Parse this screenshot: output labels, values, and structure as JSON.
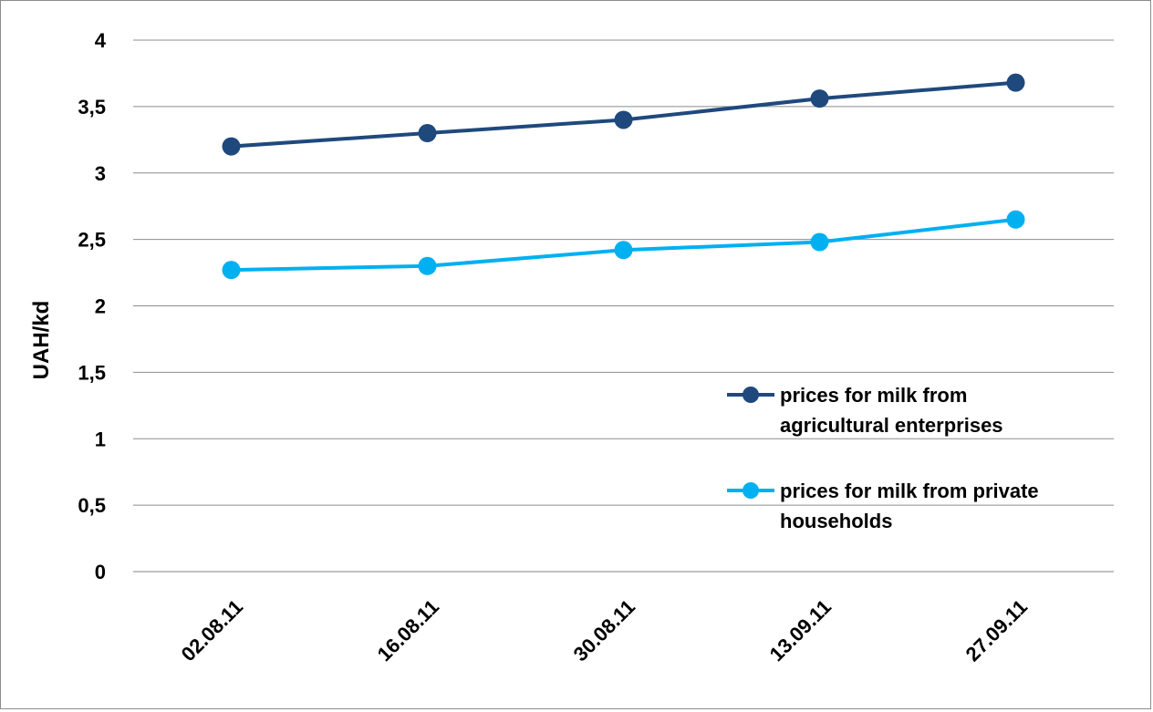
{
  "chart_data": {
    "type": "line",
    "title": "",
    "xlabel": "",
    "ylabel": "UAH/kd",
    "categories": [
      "02.08.11",
      "16.08.11",
      "30.08.11",
      "13.09.11",
      "27.09.11"
    ],
    "ylim": [
      0,
      4
    ],
    "yticks": [
      0,
      0.5,
      1,
      1.5,
      2,
      2.5,
      3,
      3.5,
      4
    ],
    "ytick_labels": [
      "0",
      "0,5",
      "1",
      "1,5",
      "2",
      "2,5",
      "3",
      "3,5",
      "4"
    ],
    "grid": true,
    "legend_position": "right",
    "series": [
      {
        "name": "prices for milk from agricultural enterprises",
        "name_lines": [
          "prices for milk from",
          "agricultural enterprises"
        ],
        "color": "#1f497d",
        "values": [
          3.2,
          3.3,
          3.4,
          3.56,
          3.68
        ]
      },
      {
        "name": "prices for milk from private households",
        "name_lines": [
          "prices for milk from private",
          "households"
        ],
        "color": "#00b0f0",
        "values": [
          2.27,
          2.3,
          2.42,
          2.48,
          2.65
        ]
      }
    ]
  }
}
